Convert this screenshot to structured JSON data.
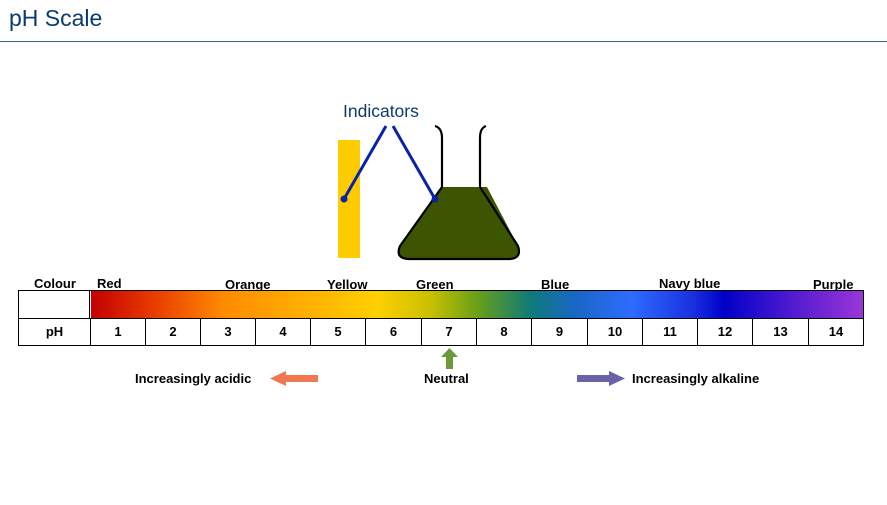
{
  "title": "pH Scale",
  "indicators_label": "Indicators",
  "colour_header": "Colour",
  "ph_header": "pH",
  "colours": [
    "Red",
    "Orange",
    "Yellow",
    "Green",
    "Blue",
    "Navy blue",
    "Purple"
  ],
  "ph_values": [
    "1",
    "2",
    "3",
    "4",
    "5",
    "6",
    "7",
    "8",
    "9",
    "10",
    "11",
    "12",
    "13",
    "14"
  ],
  "acidic_label": "Increasingly acidic",
  "neutral_label": "Neutral",
  "alkaline_label": "Increasingly alkaline",
  "colors": {
    "title": "#0b3b6e",
    "indicator_strip": "#ffcc00",
    "flask_liquid": "#3d5400",
    "indicator_lines": "#0a22aa",
    "acidic_arrow": "#f07850",
    "neutral_arrow": "#6a9a3a",
    "alkaline_arrow": "#6a62a8"
  }
}
